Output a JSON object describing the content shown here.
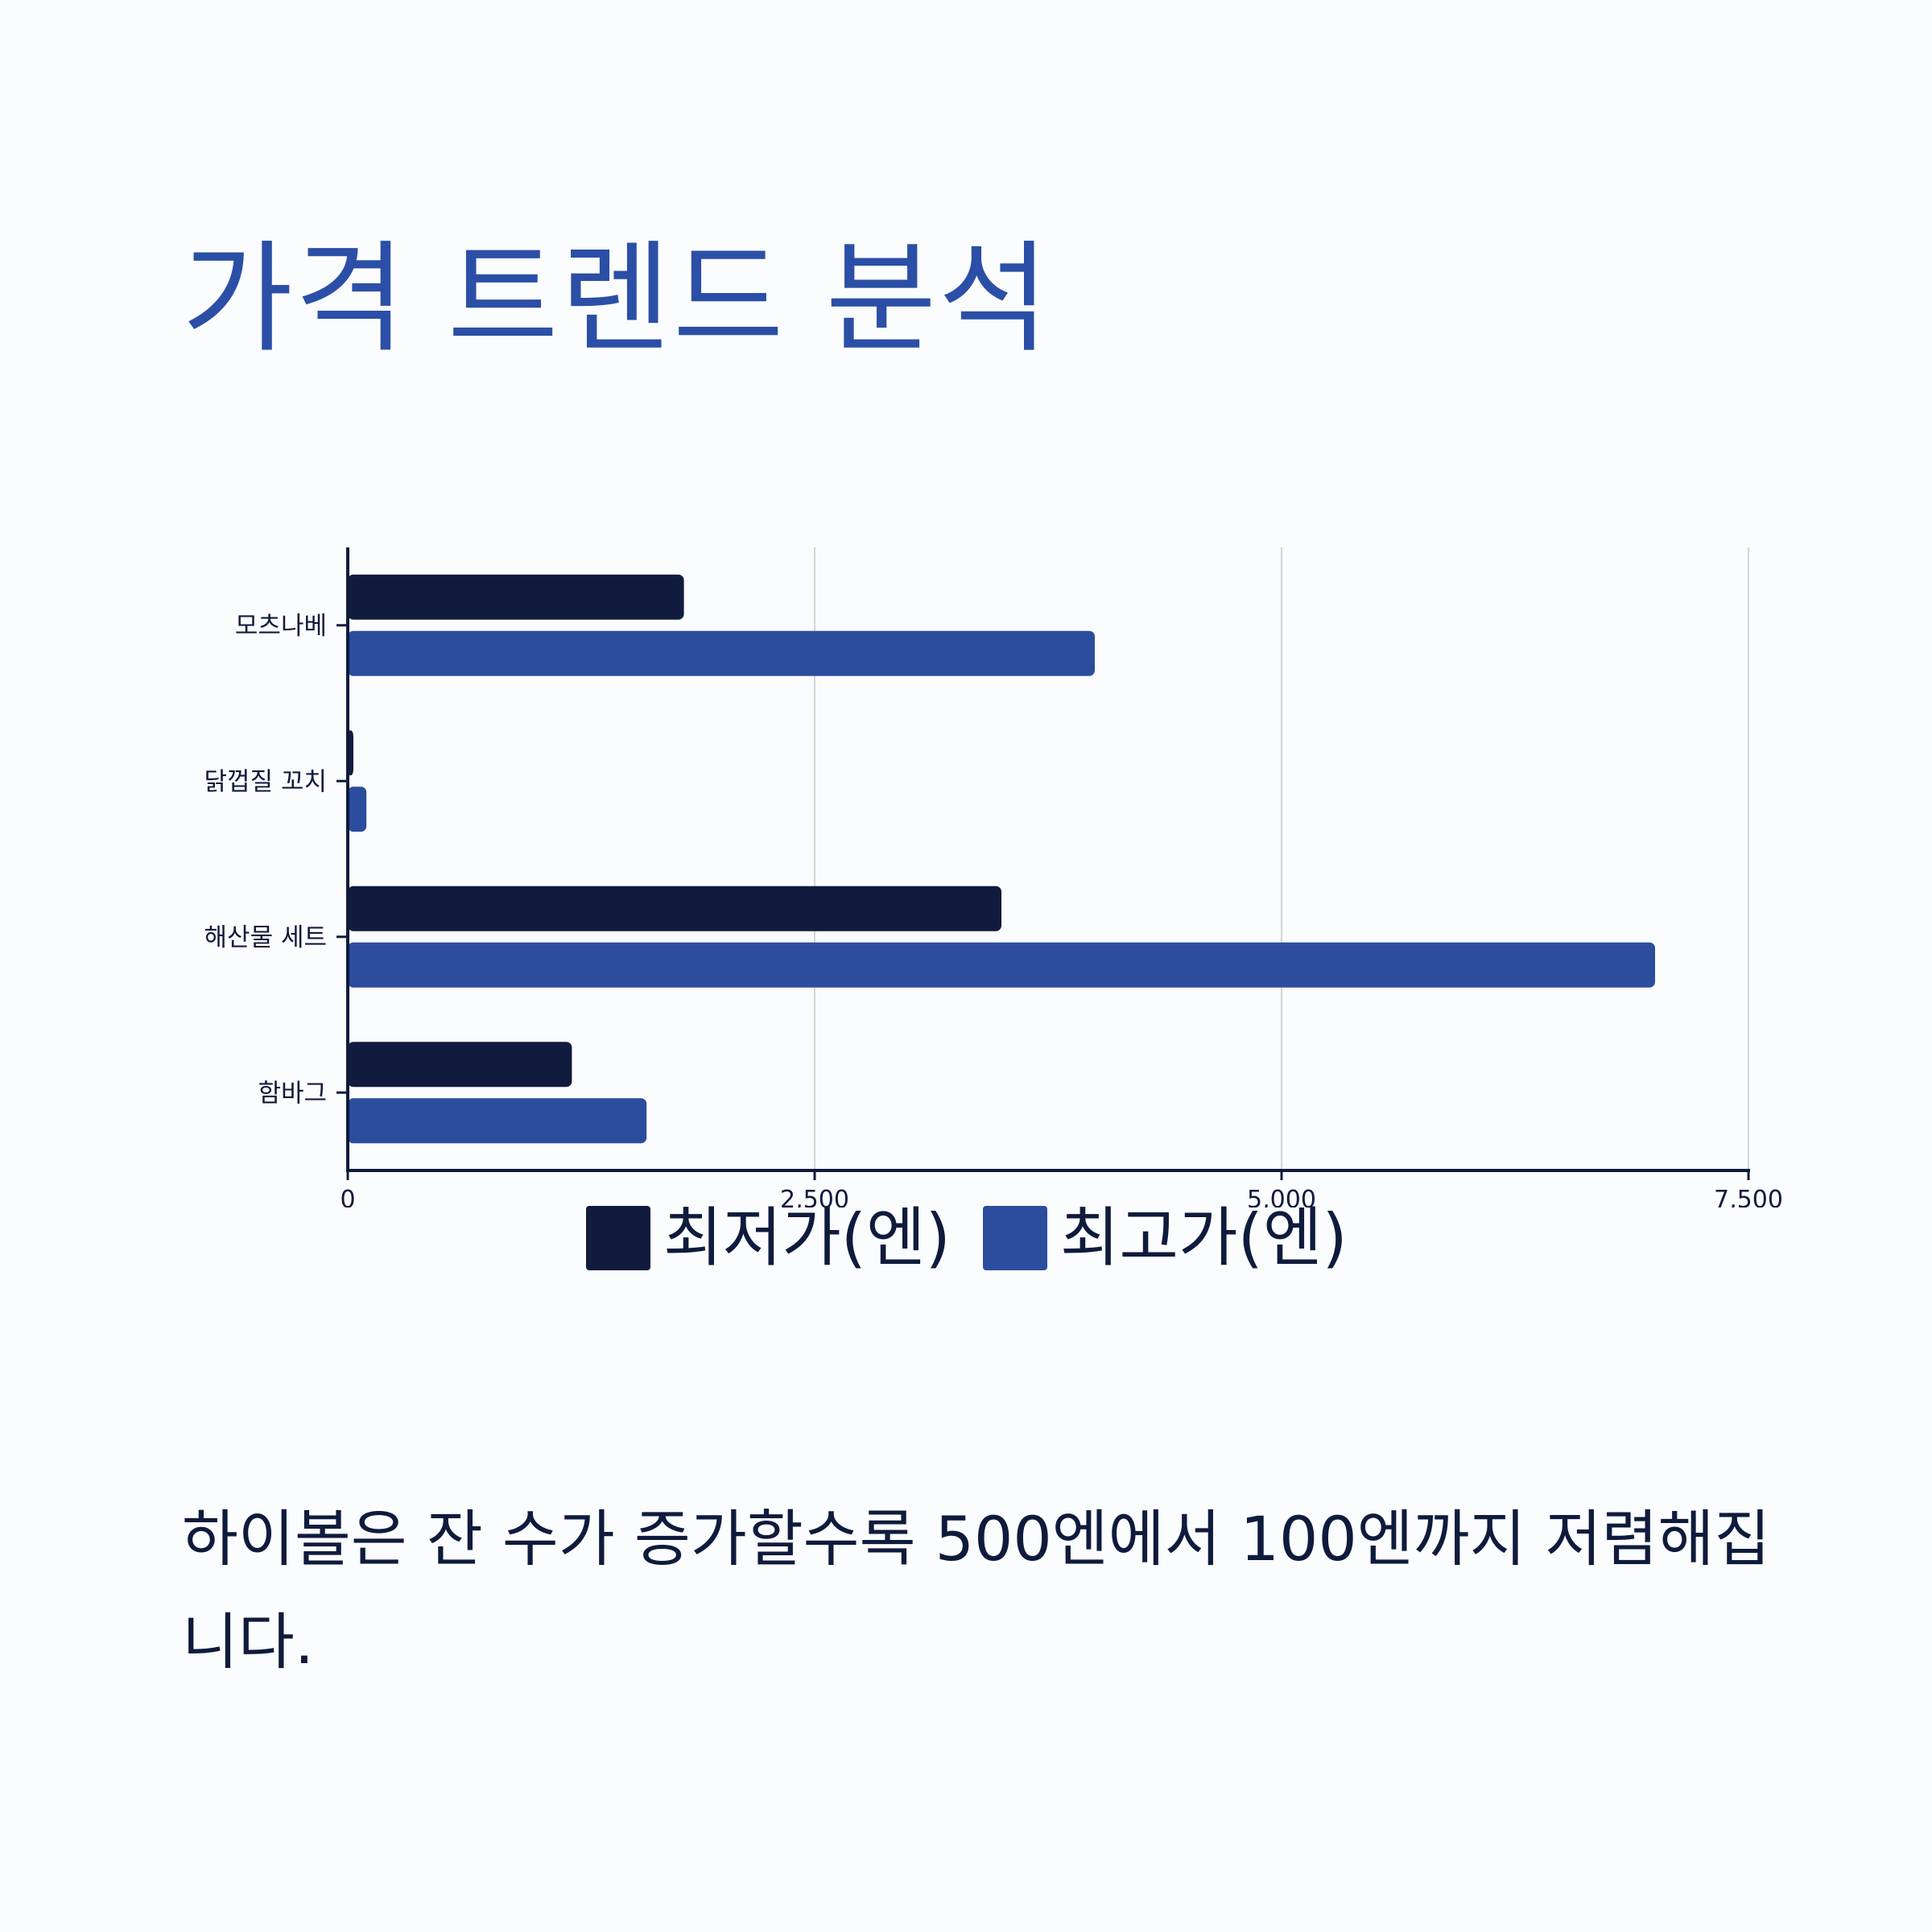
{
  "title": "가격 트렌드 분석",
  "caption": "하이볼은 잔 수가 증가할수록 500엔에서 100엔까지 저렴해집니다.",
  "chart_data": {
    "type": "bar",
    "orientation": "horizontal",
    "categories": [
      "모츠나베",
      "닭껍질 꼬치",
      "해산물 세트",
      "함바그"
    ],
    "series": [
      {
        "name": "최저가(엔)",
        "color": "#111b3d",
        "values": [
          1800,
          30,
          3500,
          1200
        ]
      },
      {
        "name": "최고가(엔)",
        "color": "#2c4d9e",
        "values": [
          4000,
          100,
          7000,
          1600
        ]
      }
    ],
    "xlim": [
      0,
      7500
    ],
    "ticks": [
      0,
      2500,
      5000,
      7500
    ],
    "tick_labels": [
      "0",
      "2,500",
      "5,000",
      "7,500"
    ],
    "grid": true,
    "legend_position": "bottom"
  }
}
